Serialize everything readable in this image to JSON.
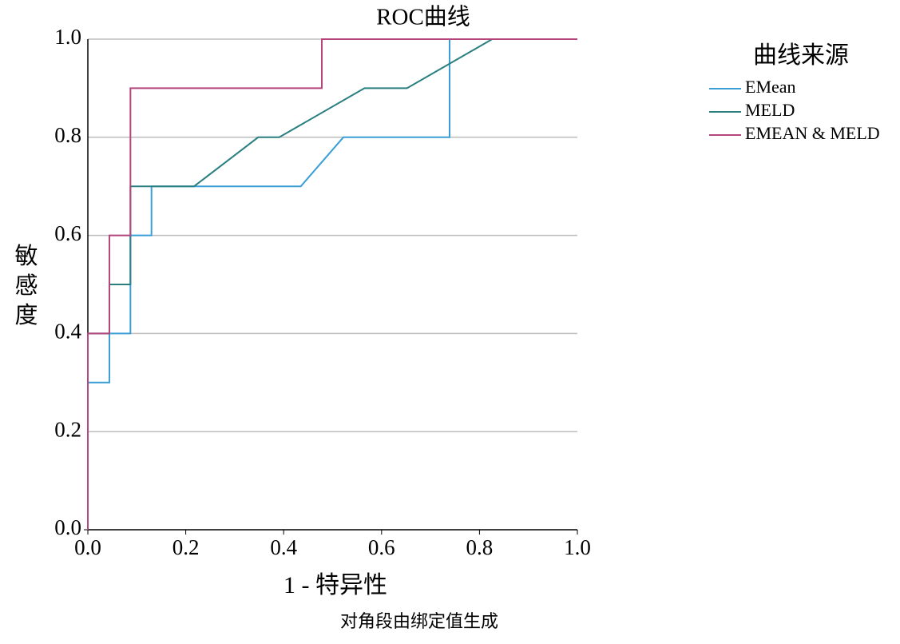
{
  "chart_data": {
    "type": "line",
    "title": "ROC曲线",
    "x_label": "1 - 特异性",
    "y_label": "敏感度",
    "footnote": "对角段由绑定值生成",
    "legend_title": "曲线来源",
    "legend": "right",
    "grid": true,
    "xlim": [
      0,
      1
    ],
    "ylim": [
      0,
      1
    ],
    "xticks": [
      {
        "value": 0,
        "label": "0.0"
      },
      {
        "value": 0.2,
        "label": "0.2"
      },
      {
        "value": 0.4,
        "label": "0.4"
      },
      {
        "value": 0.6,
        "label": "0.6"
      },
      {
        "value": 0.8,
        "label": "0.8"
      },
      {
        "value": 1,
        "label": "1.0"
      }
    ],
    "yticks": [
      {
        "value": 0,
        "label": "0.0"
      },
      {
        "value": 0.2,
        "label": "0.2"
      },
      {
        "value": 0.4,
        "label": "0.4"
      },
      {
        "value": 0.6,
        "label": "0.6"
      },
      {
        "value": 0.8,
        "label": "0.8"
      },
      {
        "value": 1,
        "label": "1.0"
      }
    ],
    "series": [
      {
        "name": "EMean",
        "color": "#3a9fd6",
        "x": [
          0,
          0,
          0.044,
          0.044,
          0.087,
          0.087,
          0.13,
          0.13,
          0.435,
          0.522,
          0.739,
          0.739,
          1
        ],
        "values": [
          0,
          0.3,
          0.3,
          0.4,
          0.4,
          0.6,
          0.6,
          0.7,
          0.7,
          0.8,
          0.8,
          1,
          1
        ]
      },
      {
        "name": "MELD",
        "color": "#2a7f80",
        "x": [
          0,
          0,
          0.044,
          0.044,
          0.087,
          0.087,
          0.217,
          0.348,
          0.391,
          0.565,
          0.652,
          0.826,
          1
        ],
        "values": [
          0,
          0.4,
          0.4,
          0.5,
          0.5,
          0.7,
          0.7,
          0.8,
          0.8,
          0.9,
          0.9,
          1,
          1
        ]
      },
      {
        "name": "EMEAN & MELD",
        "color": "#b5457d",
        "x": [
          0,
          0,
          0.044,
          0.044,
          0.087,
          0.087,
          0.478,
          0.478,
          1
        ],
        "values": [
          0,
          0.4,
          0.4,
          0.6,
          0.6,
          0.9,
          0.9,
          1,
          1
        ]
      }
    ]
  }
}
